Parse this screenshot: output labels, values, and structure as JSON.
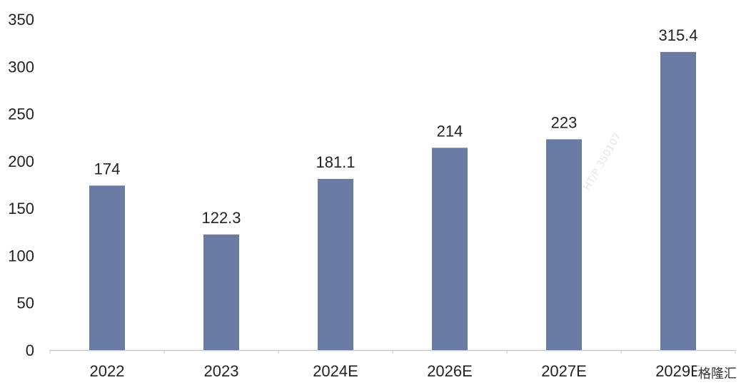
{
  "chart_data": {
    "type": "bar",
    "categories": [
      "2022",
      "2023",
      "2024E",
      "2026E",
      "2027E",
      "2029E"
    ],
    "values": [
      174,
      122.3,
      181.1,
      214,
      223,
      315.4
    ],
    "value_labels": [
      "174",
      "122.3",
      "181.1",
      "214",
      "223",
      "315.4"
    ],
    "y_ticks": [
      "0",
      "50",
      "100",
      "150",
      "200",
      "250",
      "300",
      "350"
    ],
    "ylim": [
      0,
      350
    ],
    "grid": false,
    "legend": "none",
    "bar_color": "#6a7ba3",
    "axis_color": "#c8c8c8"
  },
  "watermark": {
    "text": "HT/P 350107",
    "brand": "格隆汇"
  }
}
